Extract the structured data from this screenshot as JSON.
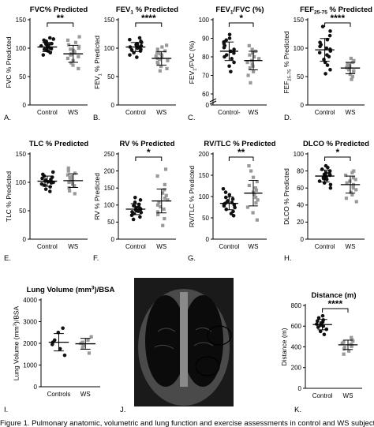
{
  "figure": {
    "caption": "Figure 1. Pulmonary anatomic, volumetric and lung function and exercise assessments in control and WS subjects"
  },
  "ct_image": {
    "panel": "J."
  },
  "chart_data": [
    {
      "type": "scatter",
      "panel": "A.",
      "title": "FVC% Predicted",
      "ylabel": "FVC % Predicted",
      "categories": [
        "Control",
        "WS"
      ],
      "ylim": [
        0,
        150
      ],
      "yticks": [
        0,
        50,
        100,
        150
      ],
      "significance": "**",
      "series": [
        {
          "name": "Control",
          "values": [
            88,
            92,
            95,
            96,
            98,
            99,
            100,
            101,
            102,
            103,
            104,
            105,
            106,
            107,
            108,
            110,
            112,
            114,
            116,
            118
          ],
          "mean": 102,
          "sd": 8
        },
        {
          "name": "WS",
          "values": [
            64,
            70,
            74,
            78,
            82,
            85,
            88,
            90,
            92,
            94,
            96,
            98,
            100,
            103,
            106,
            110,
            114,
            120
          ],
          "mean": 90,
          "sd": 15
        }
      ]
    },
    {
      "type": "scatter",
      "panel": "B.",
      "title": "FEV1 % Predicted",
      "ylabel": "FEV1 % Predicted",
      "categories": [
        "Control",
        "WS"
      ],
      "ylim": [
        0,
        150
      ],
      "yticks": [
        0,
        50,
        100,
        150
      ],
      "significance": "****",
      "series": [
        {
          "name": "Control",
          "values": [
            84,
            88,
            92,
            95,
            97,
            98,
            100,
            101,
            102,
            103,
            104,
            105,
            106,
            107,
            108,
            110,
            112,
            115,
            118
          ],
          "mean": 102,
          "sd": 8
        },
        {
          "name": "WS",
          "values": [
            60,
            64,
            68,
            72,
            75,
            78,
            80,
            82,
            84,
            86,
            88,
            90,
            92,
            95,
            98,
            102,
            105
          ],
          "mean": 82,
          "sd": 12
        }
      ]
    },
    {
      "type": "scatter",
      "panel": "C.",
      "title": "FEV1/FVC (%)",
      "ylabel": "FEV1/FVC (%)",
      "categories": [
        "Control-",
        "WS"
      ],
      "ylim": [
        0,
        100
      ],
      "yticks": [
        0,
        60,
        70,
        80,
        90,
        100
      ],
      "axis_break": true,
      "significance": "*",
      "series": [
        {
          "name": "Control",
          "values": [
            72,
            75,
            77,
            79,
            80,
            81,
            82,
            83,
            84,
            85,
            86,
            87,
            88,
            89,
            90,
            92
          ],
          "mean": 83,
          "sd": 5
        },
        {
          "name": "WS",
          "values": [
            66,
            70,
            72,
            74,
            75,
            76,
            77,
            78,
            79,
            80,
            81,
            82,
            83,
            84,
            86
          ],
          "mean": 78,
          "sd": 5
        }
      ]
    },
    {
      "type": "scatter",
      "panel": "D.",
      "title": "FEF25-75 % Predicted",
      "ylabel": "FEF25-75 % Predicted",
      "categories": [
        "Control",
        "WS"
      ],
      "ylim": [
        0,
        150
      ],
      "yticks": [
        0,
        50,
        100,
        150
      ],
      "significance": "****",
      "series": [
        {
          "name": "Control",
          "values": [
            55,
            62,
            70,
            75,
            80,
            85,
            88,
            92,
            95,
            98,
            100,
            103,
            106,
            110,
            115,
            122,
            130,
            138
          ],
          "mean": 97,
          "sd": 20
        },
        {
          "name": "WS",
          "values": [
            45,
            50,
            54,
            58,
            60,
            62,
            64,
            66,
            68,
            70,
            72,
            75,
            78,
            82
          ],
          "mean": 65,
          "sd": 10
        }
      ]
    },
    {
      "type": "scatter",
      "panel": "E.",
      "title": "TLC % Predicted",
      "ylabel": "TLC % Predicted",
      "categories": [
        "Control",
        "WS"
      ],
      "ylim": [
        0,
        150
      ],
      "yticks": [
        0,
        50,
        100,
        150
      ],
      "significance": "",
      "series": [
        {
          "name": "Control",
          "values": [
            84,
            88,
            92,
            95,
            97,
            99,
            100,
            101,
            102,
            103,
            104,
            105,
            107,
            109,
            111,
            114,
            118
          ],
          "mean": 102,
          "sd": 9
        },
        {
          "name": "WS",
          "values": [
            80,
            85,
            90,
            94,
            97,
            100,
            102,
            104,
            106,
            108,
            110,
            113,
            116,
            120,
            125
          ],
          "mean": 103,
          "sd": 12
        }
      ]
    },
    {
      "type": "scatter",
      "panel": "F.",
      "title": "RV % Predicted",
      "ylabel": "RV % Predicted",
      "categories": [
        "Control",
        "WS"
      ],
      "ylim": [
        0,
        250
      ],
      "yticks": [
        0,
        50,
        100,
        150,
        200,
        250
      ],
      "significance": "*",
      "series": [
        {
          "name": "Control",
          "values": [
            58,
            65,
            70,
            75,
            78,
            80,
            82,
            84,
            86,
            88,
            90,
            92,
            95,
            98,
            102,
            108,
            115,
            122
          ],
          "mean": 88,
          "sd": 16
        },
        {
          "name": "WS",
          "values": [
            40,
            60,
            72,
            80,
            88,
            95,
            100,
            108,
            115,
            120,
            128,
            135,
            145,
            160,
            185,
            205
          ],
          "mean": 112,
          "sd": 35
        }
      ]
    },
    {
      "type": "scatter",
      "panel": "G.",
      "title": "RV/TLC % Predicted",
      "ylabel": "RV/TLC % Predicted",
      "categories": [
        "Control",
        "WS"
      ],
      "ylim": [
        0,
        200
      ],
      "yticks": [
        0,
        50,
        100,
        150,
        200
      ],
      "significance": "**",
      "series": [
        {
          "name": "Control",
          "values": [
            55,
            60,
            65,
            70,
            74,
            78,
            80,
            82,
            84,
            86,
            88,
            90,
            94,
            98,
            104,
            110,
            118
          ],
          "mean": 84,
          "sd": 15
        },
        {
          "name": "WS",
          "values": [
            45,
            62,
            75,
            85,
            92,
            98,
            105,
            110,
            115,
            120,
            126,
            135,
            145,
            160,
            172
          ],
          "mean": 108,
          "sd": 30
        }
      ]
    },
    {
      "type": "scatter",
      "panel": "H.",
      "title": "DLCO % Predicted",
      "ylabel": "DLCO % Predicted",
      "categories": [
        "Control",
        "WS"
      ],
      "ylim": [
        0,
        100
      ],
      "yticks": [
        0,
        20,
        40,
        60,
        80,
        100
      ],
      "significance": "*",
      "series": [
        {
          "name": "Control",
          "values": [
            60,
            64,
            66,
            68,
            70,
            71,
            72,
            73,
            74,
            75,
            76,
            77,
            78,
            80,
            82,
            84,
            86
          ],
          "mean": 74,
          "sd": 7
        },
        {
          "name": "WS",
          "values": [
            44,
            48,
            52,
            55,
            58,
            60,
            62,
            64,
            66,
            68,
            70,
            72,
            75,
            78,
            80
          ],
          "mean": 64,
          "sd": 10
        }
      ]
    },
    {
      "type": "scatter",
      "panel": "I.",
      "title": "Lung Volume (mm3)/BSA",
      "ylabel": "Lung Volume (mm3)/BSA",
      "categories": [
        "Controls",
        "WS"
      ],
      "ylim": [
        0,
        4000
      ],
      "yticks": [
        0,
        1000,
        2000,
        3000,
        4000
      ],
      "significance": "",
      "series": [
        {
          "name": "Control",
          "values": [
            1450,
            1750,
            1950,
            2050,
            2150,
            2500,
            2700
          ],
          "mean": 2050,
          "sd": 400
        },
        {
          "name": "WS",
          "values": [
            1550,
            1800,
            1900,
            2000,
            2050,
            2150,
            2300
          ],
          "mean": 1980,
          "sd": 250
        }
      ]
    },
    {
      "type": "scatter",
      "panel": "K.",
      "title": "Distance (m)",
      "ylabel": "Distance (m)",
      "categories": [
        "Control",
        "WS"
      ],
      "ylim": [
        0,
        800
      ],
      "yticks": [
        0,
        200,
        400,
        600,
        800
      ],
      "significance": "****",
      "series": [
        {
          "name": "Control",
          "values": [
            520,
            550,
            570,
            590,
            600,
            610,
            620,
            630,
            640,
            650,
            660,
            680,
            700
          ],
          "mean": 615,
          "sd": 50
        },
        {
          "name": "WS",
          "values": [
            330,
            360,
            380,
            395,
            405,
            415,
            425,
            435,
            445,
            455,
            470,
            490
          ],
          "mean": 420,
          "sd": 45
        }
      ]
    }
  ]
}
